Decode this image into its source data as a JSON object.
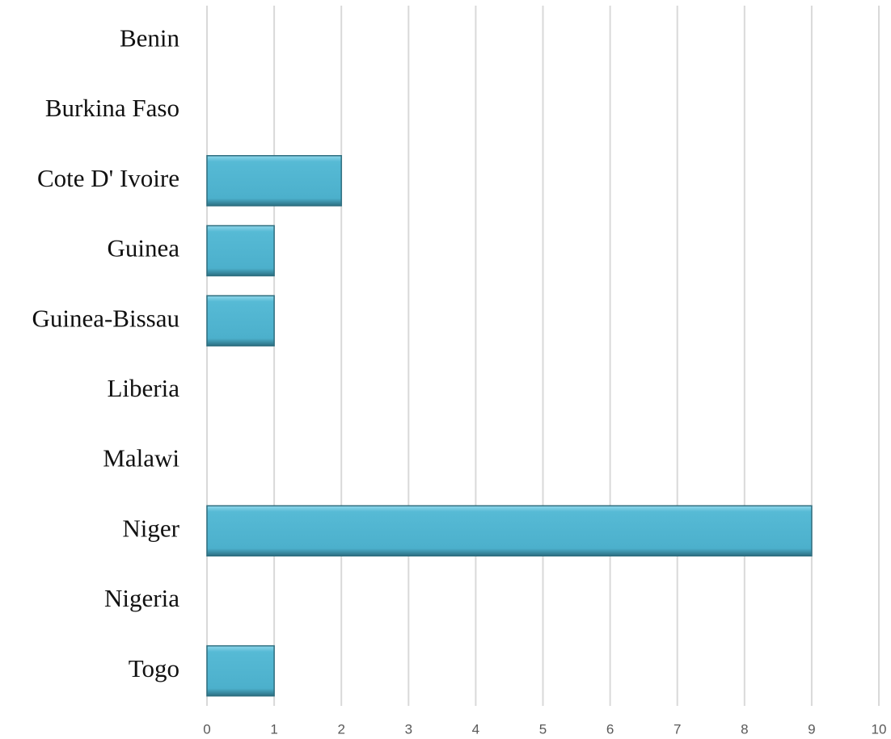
{
  "chart_data": {
    "type": "barh",
    "categories": [
      "Benin",
      "Burkina Faso",
      "Cote D' Ivoire",
      "Guinea",
      "Guinea-Bissau",
      "Liberia",
      "Malawi",
      "Niger",
      "Nigeria",
      "Togo"
    ],
    "values": [
      0,
      0,
      2,
      1,
      1,
      0,
      0,
      9,
      0,
      1
    ],
    "color": "#4fb3cf",
    "xlim": [
      0,
      10
    ],
    "xticks": [
      0,
      1,
      2,
      3,
      4,
      5,
      6,
      7,
      8,
      9,
      10
    ],
    "grid": true
  }
}
